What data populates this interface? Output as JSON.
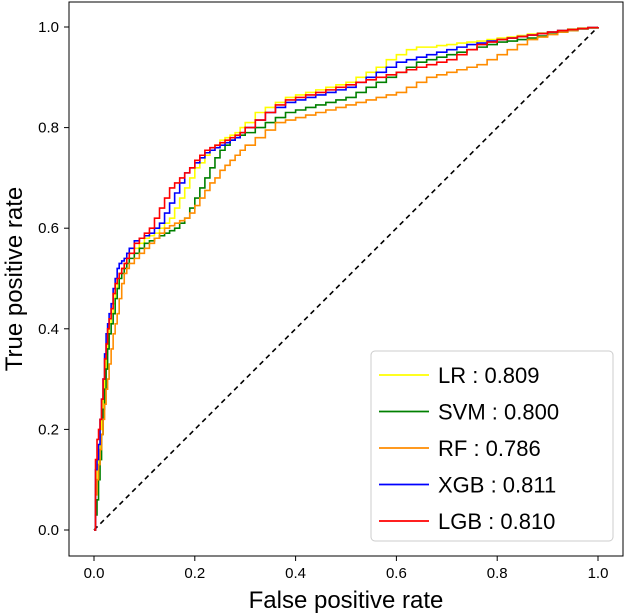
{
  "chart_data": {
    "type": "line",
    "title": "",
    "xlabel": "False positive rate",
    "ylabel": "True positive rate",
    "xlim": [
      0.0,
      1.0
    ],
    "ylim": [
      0.0,
      1.0
    ],
    "xticks": [
      "0.0",
      "0.2",
      "0.4",
      "0.6",
      "0.8",
      "1.0"
    ],
    "yticks": [
      "0.0",
      "0.2",
      "0.4",
      "0.6",
      "0.8",
      "1.0"
    ],
    "grid": false,
    "legend_position": "bottom-right",
    "reference_line": {
      "x": [
        0,
        1
      ],
      "y": [
        0,
        1
      ],
      "style": "dashed",
      "color": "#000000"
    },
    "series": [
      {
        "name": "LR",
        "auc": "0.809",
        "legend_label": "LR : 0.809",
        "color": "#ffff00",
        "x": [
          0,
          0.003,
          0.006,
          0.009,
          0.012,
          0.015,
          0.018,
          0.021,
          0.024,
          0.027,
          0.03,
          0.034,
          0.038,
          0.042,
          0.046,
          0.05,
          0.055,
          0.06,
          0.065,
          0.07,
          0.08,
          0.09,
          0.1,
          0.11,
          0.12,
          0.13,
          0.14,
          0.15,
          0.16,
          0.17,
          0.18,
          0.19,
          0.2,
          0.21,
          0.22,
          0.23,
          0.24,
          0.25,
          0.26,
          0.27,
          0.28,
          0.29,
          0.3,
          0.32,
          0.34,
          0.36,
          0.38,
          0.4,
          0.42,
          0.44,
          0.46,
          0.48,
          0.5,
          0.52,
          0.54,
          0.56,
          0.58,
          0.6,
          0.62,
          0.64,
          0.66,
          0.68,
          0.7,
          0.72,
          0.74,
          0.76,
          0.78,
          0.8,
          0.82,
          0.84,
          0.86,
          0.88,
          0.9,
          0.92,
          0.94,
          0.96,
          0.98,
          1.0
        ],
        "y": [
          0,
          0.09,
          0.13,
          0.16,
          0.2,
          0.24,
          0.28,
          0.32,
          0.35,
          0.38,
          0.41,
          0.43,
          0.45,
          0.47,
          0.49,
          0.51,
          0.52,
          0.53,
          0.54,
          0.55,
          0.56,
          0.57,
          0.58,
          0.585,
          0.59,
          0.6,
          0.61,
          0.62,
          0.64,
          0.66,
          0.68,
          0.7,
          0.72,
          0.73,
          0.745,
          0.755,
          0.765,
          0.775,
          0.78,
          0.785,
          0.79,
          0.8,
          0.81,
          0.83,
          0.84,
          0.85,
          0.86,
          0.865,
          0.87,
          0.875,
          0.88,
          0.885,
          0.89,
          0.9,
          0.91,
          0.92,
          0.935,
          0.945,
          0.955,
          0.96,
          0.96,
          0.963,
          0.965,
          0.968,
          0.97,
          0.972,
          0.975,
          0.978,
          0.98,
          0.983,
          0.986,
          0.988,
          0.99,
          0.993,
          0.996,
          0.998,
          0.999,
          1.0
        ]
      },
      {
        "name": "SVM",
        "auc": "0.800",
        "legend_label": "SVM : 0.800",
        "color": "#008000",
        "x": [
          0,
          0.003,
          0.006,
          0.009,
          0.012,
          0.015,
          0.018,
          0.021,
          0.024,
          0.027,
          0.03,
          0.034,
          0.038,
          0.042,
          0.046,
          0.05,
          0.055,
          0.06,
          0.065,
          0.07,
          0.08,
          0.09,
          0.1,
          0.11,
          0.12,
          0.13,
          0.14,
          0.15,
          0.16,
          0.17,
          0.18,
          0.19,
          0.2,
          0.21,
          0.22,
          0.23,
          0.24,
          0.25,
          0.26,
          0.27,
          0.28,
          0.29,
          0.3,
          0.32,
          0.34,
          0.36,
          0.38,
          0.4,
          0.42,
          0.44,
          0.46,
          0.48,
          0.5,
          0.52,
          0.54,
          0.56,
          0.58,
          0.6,
          0.62,
          0.64,
          0.66,
          0.68,
          0.7,
          0.72,
          0.74,
          0.76,
          0.78,
          0.8,
          0.82,
          0.84,
          0.86,
          0.88,
          0.9,
          0.92,
          0.94,
          0.96,
          0.98,
          1.0
        ],
        "y": [
          0,
          0.03,
          0.06,
          0.1,
          0.14,
          0.19,
          0.24,
          0.28,
          0.32,
          0.36,
          0.39,
          0.41,
          0.43,
          0.46,
          0.48,
          0.5,
          0.51,
          0.52,
          0.53,
          0.54,
          0.55,
          0.56,
          0.57,
          0.575,
          0.58,
          0.585,
          0.59,
          0.595,
          0.6,
          0.61,
          0.62,
          0.64,
          0.66,
          0.68,
          0.7,
          0.72,
          0.74,
          0.755,
          0.765,
          0.775,
          0.78,
          0.785,
          0.79,
          0.8,
          0.81,
          0.82,
          0.83,
          0.835,
          0.84,
          0.845,
          0.85,
          0.855,
          0.86,
          0.87,
          0.88,
          0.89,
          0.9,
          0.91,
          0.92,
          0.93,
          0.935,
          0.94,
          0.945,
          0.95,
          0.955,
          0.96,
          0.965,
          0.97,
          0.972,
          0.975,
          0.978,
          0.982,
          0.986,
          0.99,
          0.993,
          0.996,
          0.998,
          1.0
        ]
      },
      {
        "name": "RF",
        "auc": "0.786",
        "legend_label": "RF : 0.786",
        "color": "#ff8c00",
        "x": [
          0,
          0.003,
          0.006,
          0.009,
          0.012,
          0.015,
          0.018,
          0.021,
          0.024,
          0.027,
          0.03,
          0.034,
          0.038,
          0.042,
          0.046,
          0.05,
          0.055,
          0.06,
          0.065,
          0.07,
          0.08,
          0.09,
          0.1,
          0.11,
          0.12,
          0.13,
          0.14,
          0.15,
          0.16,
          0.17,
          0.18,
          0.19,
          0.2,
          0.21,
          0.22,
          0.23,
          0.24,
          0.25,
          0.26,
          0.27,
          0.28,
          0.29,
          0.3,
          0.32,
          0.34,
          0.36,
          0.38,
          0.4,
          0.42,
          0.44,
          0.46,
          0.48,
          0.5,
          0.52,
          0.54,
          0.56,
          0.58,
          0.6,
          0.62,
          0.64,
          0.66,
          0.68,
          0.7,
          0.72,
          0.74,
          0.76,
          0.78,
          0.8,
          0.82,
          0.84,
          0.86,
          0.88,
          0.9,
          0.92,
          0.94,
          0.96,
          0.98,
          1.0
        ],
        "y": [
          0,
          0.07,
          0.1,
          0.13,
          0.16,
          0.19,
          0.22,
          0.25,
          0.28,
          0.3,
          0.33,
          0.36,
          0.39,
          0.41,
          0.43,
          0.46,
          0.49,
          0.51,
          0.52,
          0.53,
          0.54,
          0.55,
          0.56,
          0.57,
          0.58,
          0.59,
          0.6,
          0.605,
          0.61,
          0.615,
          0.62,
          0.63,
          0.645,
          0.66,
          0.675,
          0.69,
          0.7,
          0.715,
          0.725,
          0.735,
          0.745,
          0.755,
          0.765,
          0.78,
          0.795,
          0.81,
          0.815,
          0.82,
          0.825,
          0.83,
          0.835,
          0.84,
          0.845,
          0.85,
          0.855,
          0.86,
          0.865,
          0.87,
          0.88,
          0.89,
          0.9,
          0.905,
          0.91,
          0.915,
          0.92,
          0.925,
          0.935,
          0.945,
          0.955,
          0.965,
          0.975,
          0.98,
          0.985,
          0.99,
          0.993,
          0.996,
          0.998,
          1.0
        ]
      },
      {
        "name": "XGB",
        "auc": "0.811",
        "legend_label": "XGB : 0.811",
        "color": "#0000ff",
        "x": [
          0,
          0.003,
          0.006,
          0.009,
          0.012,
          0.015,
          0.018,
          0.021,
          0.024,
          0.027,
          0.03,
          0.034,
          0.038,
          0.042,
          0.046,
          0.05,
          0.055,
          0.06,
          0.065,
          0.07,
          0.08,
          0.09,
          0.1,
          0.11,
          0.12,
          0.13,
          0.14,
          0.15,
          0.16,
          0.17,
          0.18,
          0.19,
          0.2,
          0.21,
          0.22,
          0.23,
          0.24,
          0.25,
          0.26,
          0.27,
          0.28,
          0.29,
          0.3,
          0.32,
          0.34,
          0.36,
          0.38,
          0.4,
          0.42,
          0.44,
          0.46,
          0.48,
          0.5,
          0.52,
          0.54,
          0.56,
          0.58,
          0.6,
          0.62,
          0.64,
          0.66,
          0.68,
          0.7,
          0.72,
          0.74,
          0.76,
          0.78,
          0.8,
          0.82,
          0.84,
          0.86,
          0.88,
          0.9,
          0.92,
          0.94,
          0.96,
          0.98,
          1.0
        ],
        "y": [
          0,
          0.12,
          0.14,
          0.17,
          0.22,
          0.26,
          0.3,
          0.35,
          0.39,
          0.41,
          0.43,
          0.45,
          0.48,
          0.5,
          0.52,
          0.53,
          0.535,
          0.54,
          0.55,
          0.56,
          0.575,
          0.58,
          0.585,
          0.59,
          0.6,
          0.61,
          0.63,
          0.65,
          0.67,
          0.69,
          0.71,
          0.72,
          0.73,
          0.74,
          0.75,
          0.755,
          0.76,
          0.765,
          0.77,
          0.775,
          0.78,
          0.79,
          0.8,
          0.815,
          0.83,
          0.84,
          0.85,
          0.855,
          0.86,
          0.865,
          0.87,
          0.875,
          0.88,
          0.89,
          0.9,
          0.91,
          0.92,
          0.93,
          0.935,
          0.94,
          0.945,
          0.95,
          0.955,
          0.96,
          0.965,
          0.968,
          0.972,
          0.975,
          0.978,
          0.981,
          0.984,
          0.987,
          0.99,
          0.993,
          0.995,
          0.997,
          0.999,
          1.0
        ]
      },
      {
        "name": "LGB",
        "auc": "0.810",
        "legend_label": "LGB : 0.810",
        "color": "#ff0000",
        "x": [
          0,
          0.003,
          0.006,
          0.009,
          0.012,
          0.015,
          0.018,
          0.021,
          0.024,
          0.027,
          0.03,
          0.034,
          0.038,
          0.042,
          0.046,
          0.05,
          0.055,
          0.06,
          0.065,
          0.07,
          0.08,
          0.09,
          0.1,
          0.11,
          0.12,
          0.13,
          0.14,
          0.15,
          0.16,
          0.17,
          0.18,
          0.19,
          0.2,
          0.21,
          0.22,
          0.23,
          0.24,
          0.25,
          0.26,
          0.27,
          0.28,
          0.29,
          0.3,
          0.32,
          0.34,
          0.36,
          0.38,
          0.4,
          0.42,
          0.44,
          0.46,
          0.48,
          0.5,
          0.52,
          0.54,
          0.56,
          0.58,
          0.6,
          0.62,
          0.64,
          0.66,
          0.68,
          0.7,
          0.72,
          0.74,
          0.76,
          0.78,
          0.8,
          0.82,
          0.84,
          0.86,
          0.88,
          0.9,
          0.92,
          0.94,
          0.96,
          0.98,
          1.0
        ],
        "y": [
          0,
          0.14,
          0.18,
          0.2,
          0.22,
          0.26,
          0.3,
          0.34,
          0.37,
          0.4,
          0.42,
          0.44,
          0.47,
          0.49,
          0.5,
          0.51,
          0.52,
          0.53,
          0.54,
          0.55,
          0.57,
          0.58,
          0.59,
          0.6,
          0.62,
          0.64,
          0.66,
          0.68,
          0.69,
          0.7,
          0.71,
          0.72,
          0.735,
          0.745,
          0.755,
          0.76,
          0.765,
          0.77,
          0.775,
          0.78,
          0.785,
          0.79,
          0.8,
          0.815,
          0.83,
          0.845,
          0.855,
          0.86,
          0.865,
          0.87,
          0.875,
          0.88,
          0.885,
          0.89,
          0.895,
          0.9,
          0.905,
          0.91,
          0.915,
          0.92,
          0.925,
          0.93,
          0.935,
          0.945,
          0.955,
          0.965,
          0.97,
          0.975,
          0.978,
          0.981,
          0.984,
          0.987,
          0.99,
          0.993,
          0.995,
          0.997,
          0.999,
          1.0
        ]
      }
    ]
  }
}
